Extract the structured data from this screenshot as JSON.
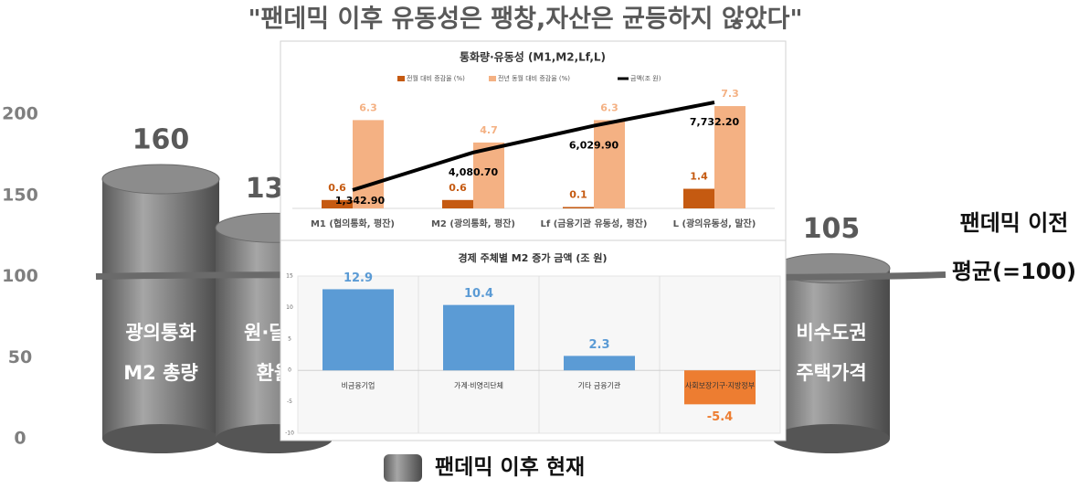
{
  "chart_data": [
    {
      "type": "cylinder",
      "title": "\"팬데믹 이후 유동성은 팽창,자산은 균등하지 않았다\"",
      "categories": [
        [
          "광의통화",
          "M2 총량"
        ],
        [
          "원·달러",
          "환율"
        ],
        [
          "비수도권",
          "주택가격"
        ]
      ],
      "series": [
        {
          "name": "팬데믹 이후 현재",
          "color": "#7f7f7f",
          "values": [
            160,
            130,
            105
          ]
        }
      ],
      "ylim": [
        0,
        200
      ],
      "yticks": [
        0,
        50,
        100,
        150,
        200
      ],
      "reference": {
        "value": 100,
        "label": [
          "팬데믹 이전",
          "평균(=100)"
        ]
      }
    },
    {
      "type": "bar-line",
      "title": "통화량·유동성 (M1,M2,Lf,L)",
      "categories": [
        "M1 (협의통화, 평잔)",
        "M2 (광의통화, 평잔)",
        "Lf (금융기관 유동성, 평잔)",
        "L (광의유동성, 말잔)"
      ],
      "ylim": [
        0,
        9
      ],
      "y2lim": [
        0,
        9200
      ],
      "series": [
        {
          "name": "전월 대비 증감율 (%)",
          "color": "#c55a11",
          "values": [
            0.6,
            0.6,
            0.1,
            1.4
          ]
        },
        {
          "name": "전년 동월 대비 증감율 (%)",
          "color": "#f4b183",
          "values": [
            6.3,
            4.7,
            6.3,
            7.3
          ]
        },
        {
          "name": "금액(조 원)",
          "color": "#000000",
          "axis": "y2",
          "values": [
            1342.9,
            4080.7,
            6029.9,
            7732.2
          ],
          "value_labels": [
            "1,342.90",
            "4,080.70",
            "6,029.90",
            "7,732.20"
          ]
        }
      ]
    },
    {
      "type": "bar",
      "title": "경제 주체별 M2 증가 금액 (조 원)",
      "categories": [
        "비금융기업",
        "가계·비영리단체",
        "기타 금융기관",
        "사회보장기구·지방정부"
      ],
      "values": [
        12.9,
        10.4,
        2.3,
        -5.4
      ],
      "colors": [
        "#5b9bd5",
        "#5b9bd5",
        "#5b9bd5",
        "#ed7d31"
      ],
      "ylim": [
        -10,
        15
      ],
      "yticks": [
        -10,
        -5,
        0,
        5,
        10,
        15
      ]
    }
  ]
}
